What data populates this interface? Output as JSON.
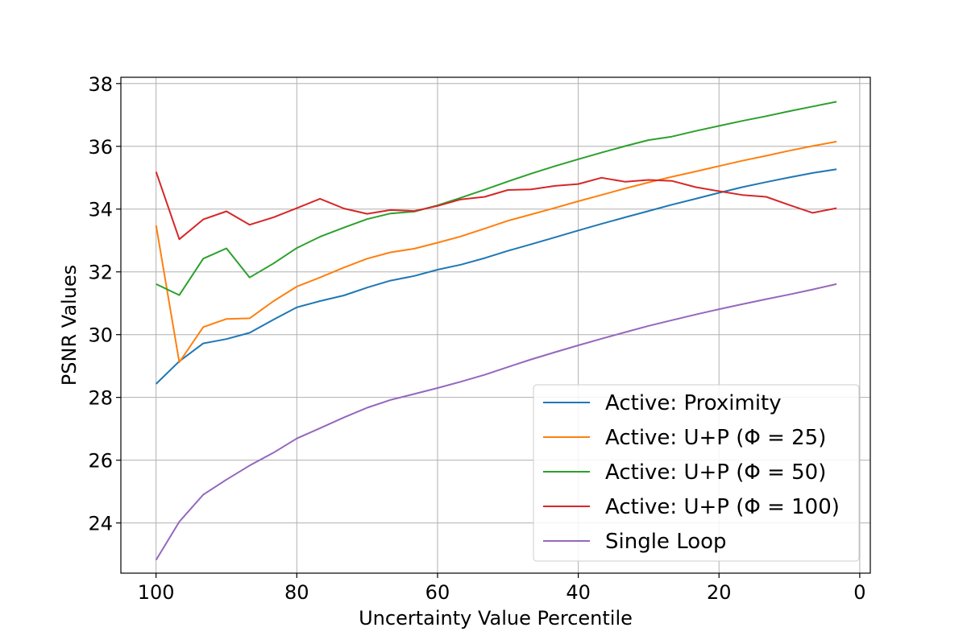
{
  "chart_data": {
    "type": "line",
    "xlabel": "Uncertainty Value Percentile",
    "ylabel": "PSNR Values",
    "xlim": [
      105,
      -1.5
    ],
    "ylim": [
      22.4,
      38.2
    ],
    "x_ticks": [
      100,
      80,
      60,
      40,
      20,
      0
    ],
    "y_ticks": [
      24,
      26,
      28,
      30,
      32,
      34,
      36,
      38
    ],
    "grid": true,
    "legend_position": "lower-right",
    "x": [
      100,
      96.7,
      93.3,
      90,
      86.7,
      83.3,
      80,
      76.7,
      73.3,
      70,
      66.7,
      63.3,
      60,
      56.7,
      53.3,
      50,
      46.7,
      43.3,
      40,
      36.7,
      33.3,
      30,
      26.7,
      23.3,
      20,
      16.7,
      13.3,
      10,
      6.7,
      3.3
    ],
    "series": [
      {
        "name": "Active: Proximity",
        "color": "#1f77b4",
        "values": [
          28.43,
          29.15,
          29.72,
          29.86,
          30.06,
          30.48,
          30.87,
          31.07,
          31.25,
          31.5,
          31.72,
          31.87,
          32.07,
          32.23,
          32.44,
          32.67,
          32.88,
          33.1,
          33.32,
          33.53,
          33.74,
          33.94,
          34.14,
          34.33,
          34.52,
          34.7,
          34.86,
          35.01,
          35.15,
          35.27
        ]
      },
      {
        "name": "Active: U+P (Φ = 25)",
        "color": "#ff7f0e",
        "values": [
          33.48,
          29.12,
          30.24,
          30.5,
          30.52,
          31.07,
          31.53,
          31.82,
          32.14,
          32.42,
          32.62,
          32.74,
          32.93,
          33.13,
          33.38,
          33.63,
          33.83,
          34.04,
          34.25,
          34.45,
          34.66,
          34.85,
          35.03,
          35.2,
          35.37,
          35.54,
          35.7,
          35.86,
          36.01,
          36.15
        ]
      },
      {
        "name": "Active: U+P (Φ = 50)",
        "color": "#2ca02c",
        "values": [
          31.61,
          31.26,
          32.42,
          32.75,
          31.82,
          32.27,
          32.76,
          33.12,
          33.41,
          33.68,
          33.86,
          33.92,
          34.12,
          34.36,
          34.62,
          34.88,
          35.13,
          35.37,
          35.59,
          35.8,
          36.01,
          36.2,
          36.31,
          36.49,
          36.65,
          36.81,
          36.96,
          37.12,
          37.27,
          37.42
        ]
      },
      {
        "name": "Active: U+P (Φ = 100)",
        "color": "#d62728",
        "values": [
          35.19,
          33.04,
          33.67,
          33.93,
          33.5,
          33.74,
          34.03,
          34.33,
          34.02,
          33.85,
          33.97,
          33.94,
          34.1,
          34.31,
          34.39,
          34.61,
          34.63,
          34.74,
          34.8,
          35.0,
          34.87,
          34.93,
          34.9,
          34.7,
          34.57,
          34.45,
          34.39,
          34.13,
          33.88,
          34.03
        ]
      },
      {
        "name": "Single Loop",
        "color": "#9467bd",
        "values": [
          22.82,
          24.04,
          24.9,
          25.38,
          25.83,
          26.24,
          26.69,
          27.02,
          27.36,
          27.67,
          27.92,
          28.11,
          28.3,
          28.5,
          28.72,
          28.97,
          29.21,
          29.44,
          29.66,
          29.87,
          30.08,
          30.28,
          30.46,
          30.64,
          30.81,
          30.97,
          31.13,
          31.28,
          31.44,
          31.61
        ]
      }
    ]
  }
}
